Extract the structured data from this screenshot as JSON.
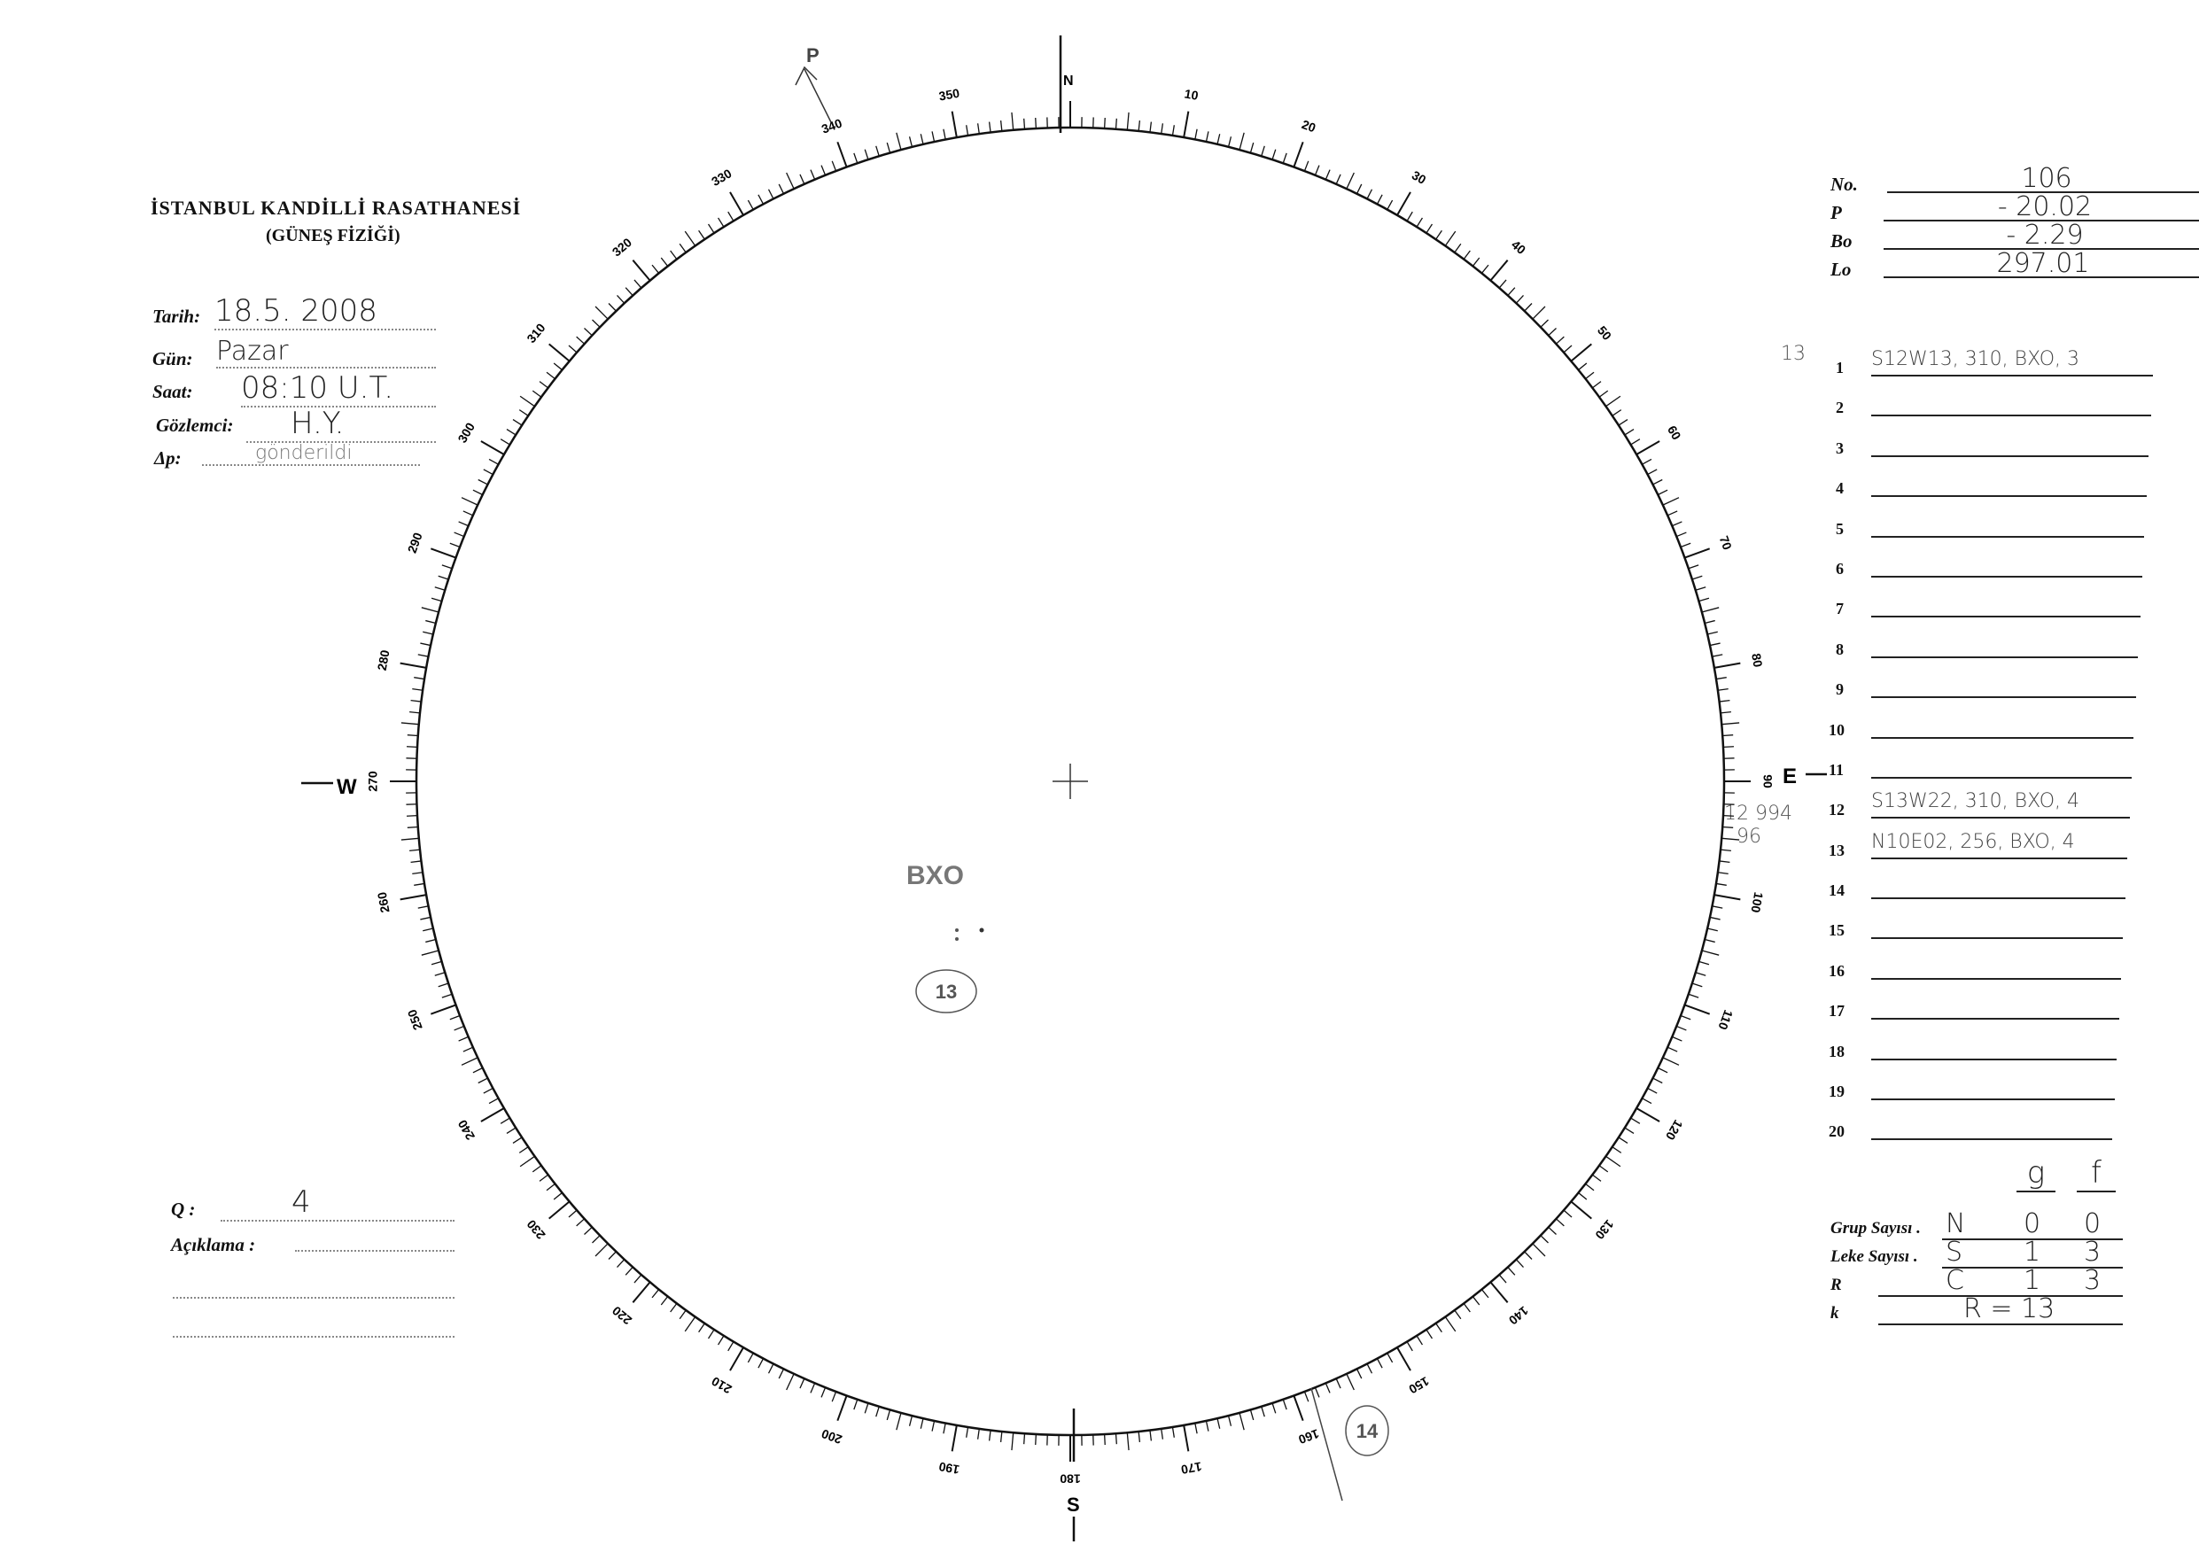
{
  "header": {
    "title": "İSTANBUL KANDİLLİ RASATHANESİ",
    "subtitle": "(GÜNEŞ FİZİĞİ)"
  },
  "observation": {
    "tarih_label": "Tarih:",
    "tarih_value": "18.5. 2008",
    "gun_label": "Gün:",
    "gun_value": "Pazar",
    "saat_label": "Saat:",
    "saat_value": "08:10 U.T.",
    "gozlemci_label": "Gözlemci:",
    "gozlemci_value": "H.Y.",
    "dp_label": "Δp:",
    "dp_value": "gönderildi"
  },
  "quality": {
    "q_label": "Q :",
    "q_value": "4",
    "aciklama_label": "Açıklama :"
  },
  "parameters": [
    {
      "label": "No.",
      "value": "106"
    },
    {
      "label": "P",
      "value": "- 20.02"
    },
    {
      "label": "Bo",
      "value": "- 2.29"
    },
    {
      "label": "Lo",
      "value": "297.01"
    }
  ],
  "groups": [
    {
      "n": "1",
      "value": "S12W13, 310, BXO, 3",
      "note": "13"
    },
    {
      "n": "2",
      "value": ""
    },
    {
      "n": "3",
      "value": ""
    },
    {
      "n": "4",
      "value": ""
    },
    {
      "n": "5",
      "value": ""
    },
    {
      "n": "6",
      "value": ""
    },
    {
      "n": "7",
      "value": ""
    },
    {
      "n": "8",
      "value": ""
    },
    {
      "n": "9",
      "value": ""
    },
    {
      "n": "10",
      "value": ""
    },
    {
      "n": "11",
      "value": ""
    },
    {
      "n": "12",
      "value": "S13W22, 310, BXO, 4",
      "note": "12  994"
    },
    {
      "n": "13",
      "value": "N10E02, 256, BXO, 4",
      "note": "96"
    },
    {
      "n": "14",
      "value": ""
    },
    {
      "n": "15",
      "value": ""
    },
    {
      "n": "16",
      "value": ""
    },
    {
      "n": "17",
      "value": ""
    },
    {
      "n": "18",
      "value": ""
    },
    {
      "n": "19",
      "value": ""
    },
    {
      "n": "20",
      "value": ""
    }
  ],
  "counts": {
    "col_g": "g",
    "col_f": "f",
    "rows": [
      {
        "label": "Grup Sayısı .",
        "hemi": "N",
        "g": "0",
        "f": "0"
      },
      {
        "label": "Leke Sayısı .",
        "hemi": "S",
        "g": "1",
        "f": "3"
      },
      {
        "label": "R",
        "hemi": "C",
        "g": "1",
        "f": "3"
      },
      {
        "label": "k",
        "hemi": "R = 13",
        "g": "",
        "f": ""
      }
    ]
  },
  "disk": {
    "compass": {
      "n": "N",
      "e": "E",
      "s": "S",
      "w": "W"
    },
    "p_axis_label": "P",
    "spot_label": "BXO",
    "spot_group": "13",
    "limb_group": "14"
  }
}
